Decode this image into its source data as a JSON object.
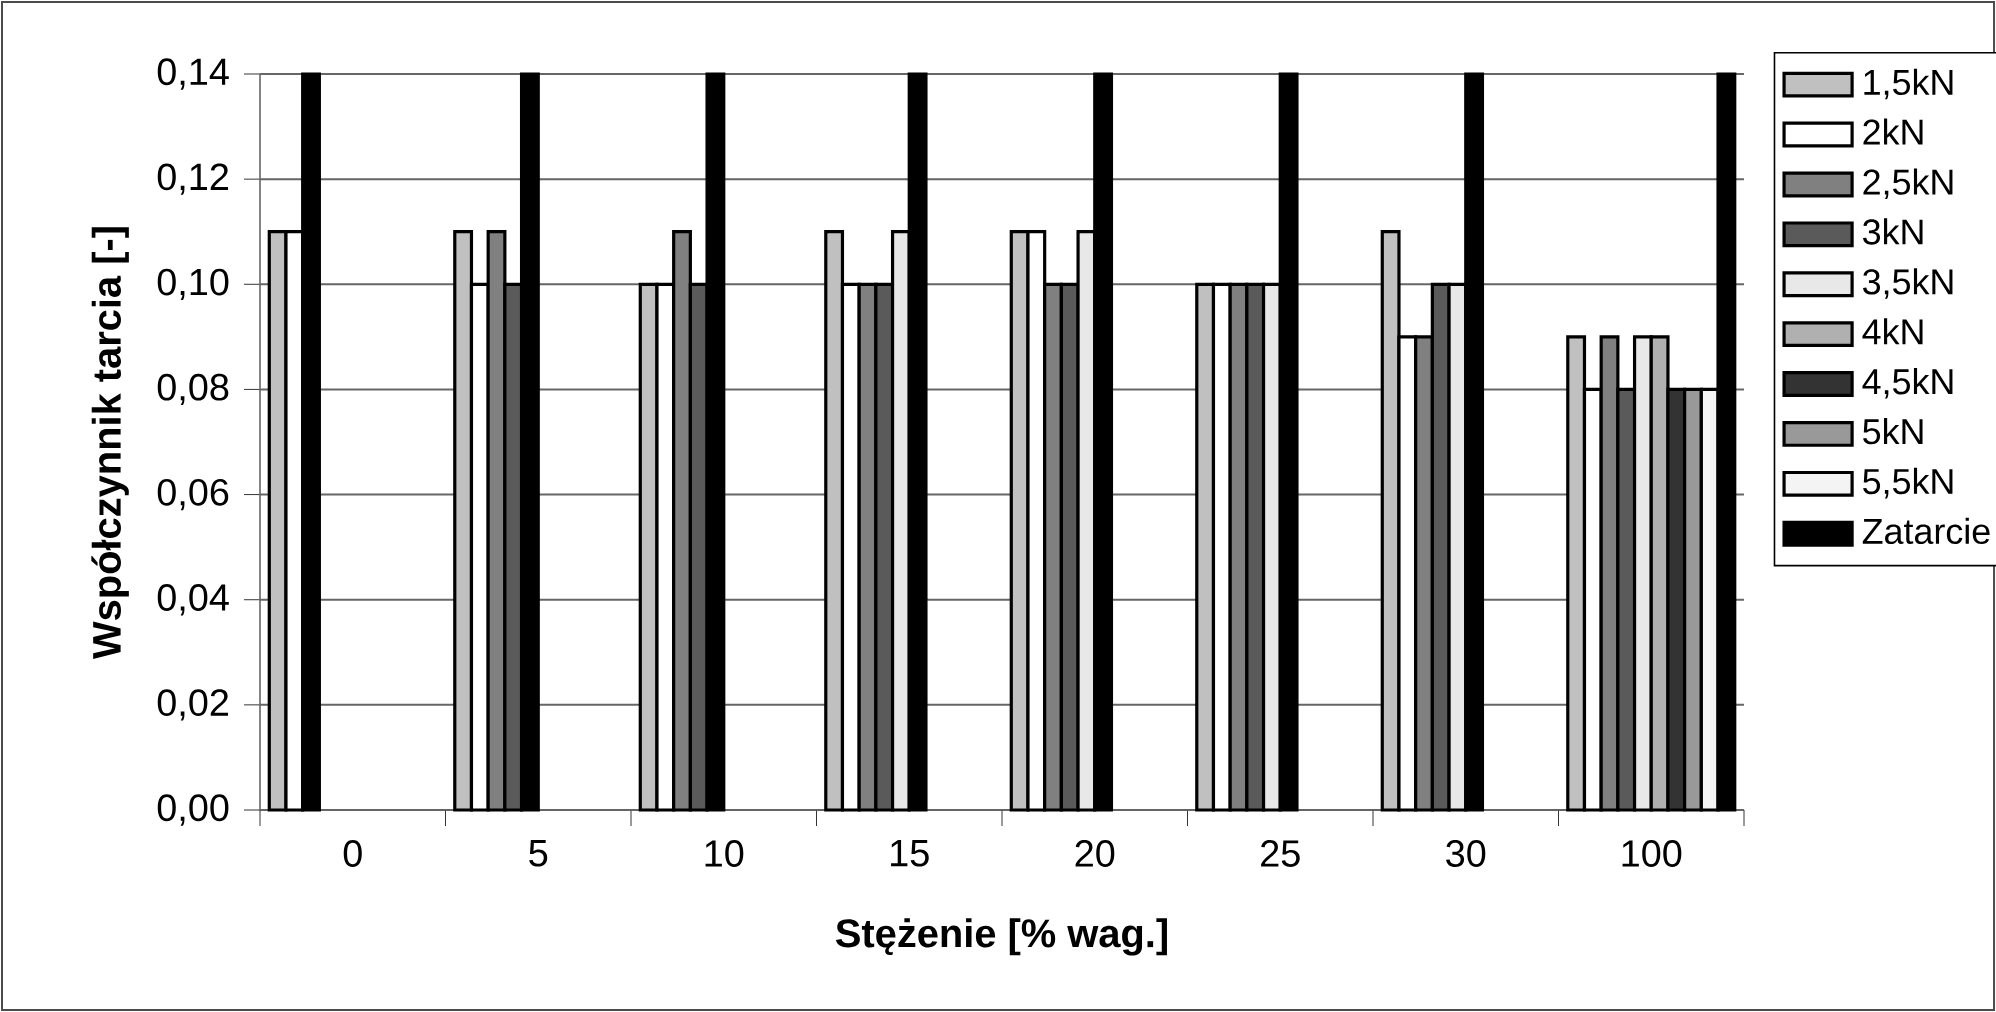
{
  "chart_data": {
    "type": "bar",
    "xlabel": "Stężenie [% wag.]",
    "ylabel": "Współczynnik tarcia [-]",
    "categories": [
      "0",
      "5",
      "10",
      "15",
      "20",
      "25",
      "30",
      "100"
    ],
    "series": [
      {
        "name": "1,5kN",
        "color": "#c0c0c0",
        "values": [
          0.11,
          0.11,
          0.1,
          0.11,
          0.11,
          0.1,
          0.11,
          0.09
        ]
      },
      {
        "name": "2kN",
        "color": "#ffffff",
        "values": [
          0.11,
          0.1,
          0.1,
          0.1,
          0.11,
          0.1,
          0.09,
          0.08
        ]
      },
      {
        "name": "2,5kN",
        "color": "#808080",
        "values": [
          null,
          0.11,
          0.11,
          0.1,
          0.1,
          0.1,
          0.09,
          0.09
        ]
      },
      {
        "name": "3kN",
        "color": "#5a5a5a",
        "values": [
          null,
          0.1,
          0.1,
          0.1,
          0.1,
          0.1,
          0.1,
          0.08
        ]
      },
      {
        "name": "3,5kN",
        "color": "#e8e8e8",
        "values": [
          null,
          null,
          null,
          0.11,
          0.11,
          0.1,
          0.1,
          0.09
        ]
      },
      {
        "name": "4kN",
        "color": "#b0b0b0",
        "values": [
          null,
          null,
          null,
          null,
          null,
          null,
          null,
          0.09
        ]
      },
      {
        "name": "4,5kN",
        "color": "#333333",
        "values": [
          null,
          null,
          null,
          null,
          null,
          null,
          null,
          0.08
        ]
      },
      {
        "name": "5kN",
        "color": "#999999",
        "values": [
          null,
          null,
          null,
          null,
          null,
          null,
          null,
          0.08
        ]
      },
      {
        "name": "5,5kN",
        "color": "#f4f4f4",
        "values": [
          null,
          null,
          null,
          null,
          null,
          null,
          null,
          0.08
        ]
      },
      {
        "name": "Zatarcie",
        "color": "#000000",
        "values": [
          0.14,
          0.14,
          0.14,
          0.14,
          0.14,
          0.14,
          0.14,
          0.14
        ]
      }
    ],
    "ylim": [
      0,
      0.14
    ],
    "yticks": [
      {
        "value": 0,
        "label": "0,00"
      },
      {
        "value": 0.02,
        "label": "0,02"
      },
      {
        "value": 0.04,
        "label": "0,04"
      },
      {
        "value": 0.06,
        "label": "0,06"
      },
      {
        "value": 0.08,
        "label": "0,08"
      },
      {
        "value": 0.1,
        "label": "0,10"
      },
      {
        "value": 0.12,
        "label": "0,12"
      },
      {
        "value": 0.14,
        "label": "0,14"
      }
    ],
    "grid": "y",
    "legend": "right"
  }
}
